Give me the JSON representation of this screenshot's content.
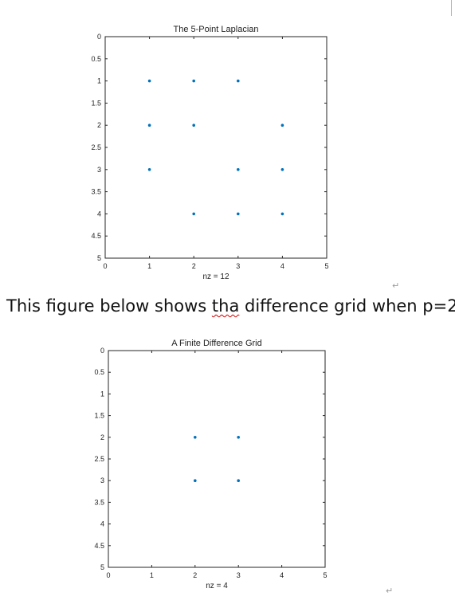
{
  "document": {
    "caption": "This figure below shows ",
    "caption_misspelled": "tha",
    "caption_rest": " difference grid when p=2",
    "paragraph_mark": "↵"
  },
  "colors": {
    "marker": "#0072bd",
    "axis": "#262626",
    "text": "#222222",
    "misspell_underline": "#d00000"
  },
  "chart_data": [
    {
      "type": "scatter",
      "title": "The 5-Point Laplacian",
      "xlabel": "nz = 12",
      "ylabel": "",
      "xlim": [
        0,
        5
      ],
      "ylim": [
        0,
        5
      ],
      "y_reversed": true,
      "xticks": [
        "0",
        "1",
        "2",
        "3",
        "4",
        "5"
      ],
      "yticks": [
        "0",
        "0.5",
        "1",
        "1.5",
        "2",
        "2.5",
        "3",
        "3.5",
        "4",
        "4.5",
        "5"
      ],
      "grid": false,
      "points": [
        {
          "x": 1,
          "y": 1
        },
        {
          "x": 2,
          "y": 1
        },
        {
          "x": 3,
          "y": 1
        },
        {
          "x": 1,
          "y": 2
        },
        {
          "x": 2,
          "y": 2
        },
        {
          "x": 4,
          "y": 2
        },
        {
          "x": 1,
          "y": 3
        },
        {
          "x": 3,
          "y": 3
        },
        {
          "x": 4,
          "y": 3
        },
        {
          "x": 2,
          "y": 4
        },
        {
          "x": 3,
          "y": 4
        },
        {
          "x": 4,
          "y": 4
        }
      ]
    },
    {
      "type": "scatter",
      "title": "A Finite Difference Grid",
      "xlabel": "nz = 4",
      "ylabel": "",
      "xlim": [
        0,
        5
      ],
      "ylim": [
        0,
        5
      ],
      "y_reversed": true,
      "xticks": [
        "0",
        "1",
        "2",
        "3",
        "4",
        "5"
      ],
      "yticks": [
        "0",
        "0.5",
        "1",
        "1.5",
        "2",
        "2.5",
        "3",
        "3.5",
        "4",
        "4.5",
        "5"
      ],
      "grid": false,
      "points": [
        {
          "x": 2,
          "y": 2
        },
        {
          "x": 3,
          "y": 2
        },
        {
          "x": 2,
          "y": 3
        },
        {
          "x": 3,
          "y": 3
        }
      ]
    }
  ]
}
